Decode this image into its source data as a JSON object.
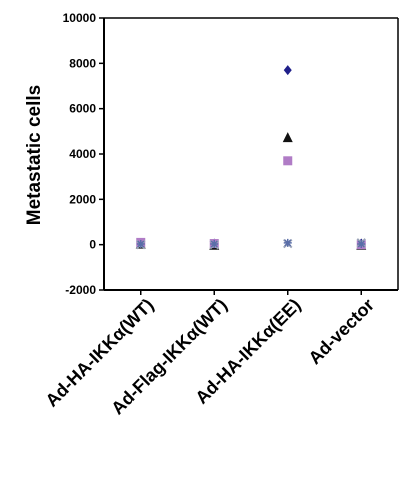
{
  "chart_data": {
    "type": "scatter",
    "ylabel": "Metastatic cells",
    "ylim": [
      -2000,
      10000
    ],
    "yticks": [
      -2000,
      0,
      2000,
      4000,
      6000,
      8000,
      10000
    ],
    "ytick_labels": [
      "-2000",
      "0",
      "2000",
      "4000",
      "6000",
      "8000",
      "10000"
    ],
    "categories": [
      "Ad-HA-IKKα(WT)",
      "Ad-Flag-IKKα(WT)",
      "Ad-HA-IKKα(EE)",
      "Ad-vector"
    ],
    "series": [
      {
        "marker": "diamond",
        "color": "#1f1f8a",
        "values": [
          50,
          50,
          7700,
          50
        ]
      },
      {
        "marker": "triangle",
        "color": "#111111",
        "values": [
          0,
          -50,
          4700,
          -50
        ]
      },
      {
        "marker": "square",
        "color": "#b07cc6",
        "values": [
          100,
          50,
          3700,
          0
        ]
      },
      {
        "marker": "x",
        "color": "#9aa3b8",
        "values": [
          0,
          0,
          50,
          80
        ]
      },
      {
        "marker": "star",
        "color": "#5a6ea8",
        "values": [
          30,
          30,
          80,
          30
        ]
      }
    ]
  }
}
